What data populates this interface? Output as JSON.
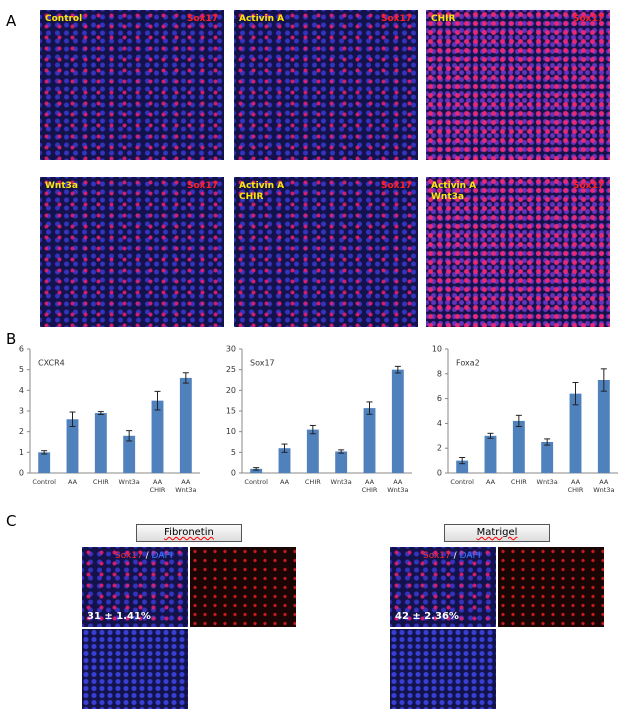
{
  "panels": {
    "a": "A",
    "b": "B",
    "c": "C"
  },
  "images_a": [
    {
      "label": "Control",
      "marker": "Sox17"
    },
    {
      "label": "Activin A",
      "marker": "Sox17"
    },
    {
      "label": "CHIR",
      "marker": "Sox17"
    },
    {
      "label": "Wnt3a",
      "marker": "Sox17"
    },
    {
      "label": "Activin A CHIR",
      "marker": "Sox17"
    },
    {
      "label": "Activin A Wnt3a",
      "marker": "Sox17"
    }
  ],
  "chart_data": [
    {
      "type": "bar",
      "title": "CXCR4",
      "categories": [
        "Control",
        "AA",
        "CHIR",
        "Wnt3a",
        "AA CHIR",
        "AA Wnt3a"
      ],
      "values": [
        1.0,
        2.6,
        2.9,
        1.8,
        3.5,
        4.6
      ],
      "errors": [
        0.08,
        0.35,
        0.07,
        0.25,
        0.45,
        0.25
      ],
      "color": "#4f81bd",
      "ylim": [
        0,
        6
      ],
      "yticks": [
        0,
        1,
        2,
        3,
        4,
        5,
        6
      ]
    },
    {
      "type": "bar",
      "title": "Sox17",
      "categories": [
        "Control",
        "AA",
        "CHIR",
        "Wnt3a",
        "AA CHIR",
        "AA Wnt3a"
      ],
      "values": [
        1,
        6,
        10.5,
        5.2,
        15.7,
        25
      ],
      "errors": [
        0.3,
        1.0,
        1.0,
        0.4,
        1.5,
        0.8
      ],
      "color": "#4f81bd",
      "ylim": [
        0,
        30
      ],
      "yticks": [
        0,
        5,
        10,
        15,
        20,
        25,
        30
      ]
    },
    {
      "type": "bar",
      "title": "Foxa2",
      "categories": [
        "Control",
        "AA",
        "CHIR",
        "Wnt3a",
        "AA CHIR",
        "AA Wnt3a"
      ],
      "values": [
        1,
        3,
        4.2,
        2.5,
        6.4,
        7.5
      ],
      "errors": [
        0.25,
        0.2,
        0.45,
        0.25,
        0.9,
        0.9
      ],
      "color": "#4f81bd",
      "ylim": [
        0,
        10
      ],
      "yticks": [
        0,
        2,
        4,
        6,
        8,
        10
      ]
    }
  ],
  "panel_c": [
    {
      "substrate": "Fibronetin",
      "stain": "Sox17",
      "separator": "/",
      "counterstain": "DAPI",
      "measurement": "31 ± 1.41%"
    },
    {
      "substrate": "Matrigel",
      "stain": "Sox17",
      "separator": "/",
      "counterstain": "DAPI",
      "measurement": "42 ± 2.36%"
    }
  ]
}
